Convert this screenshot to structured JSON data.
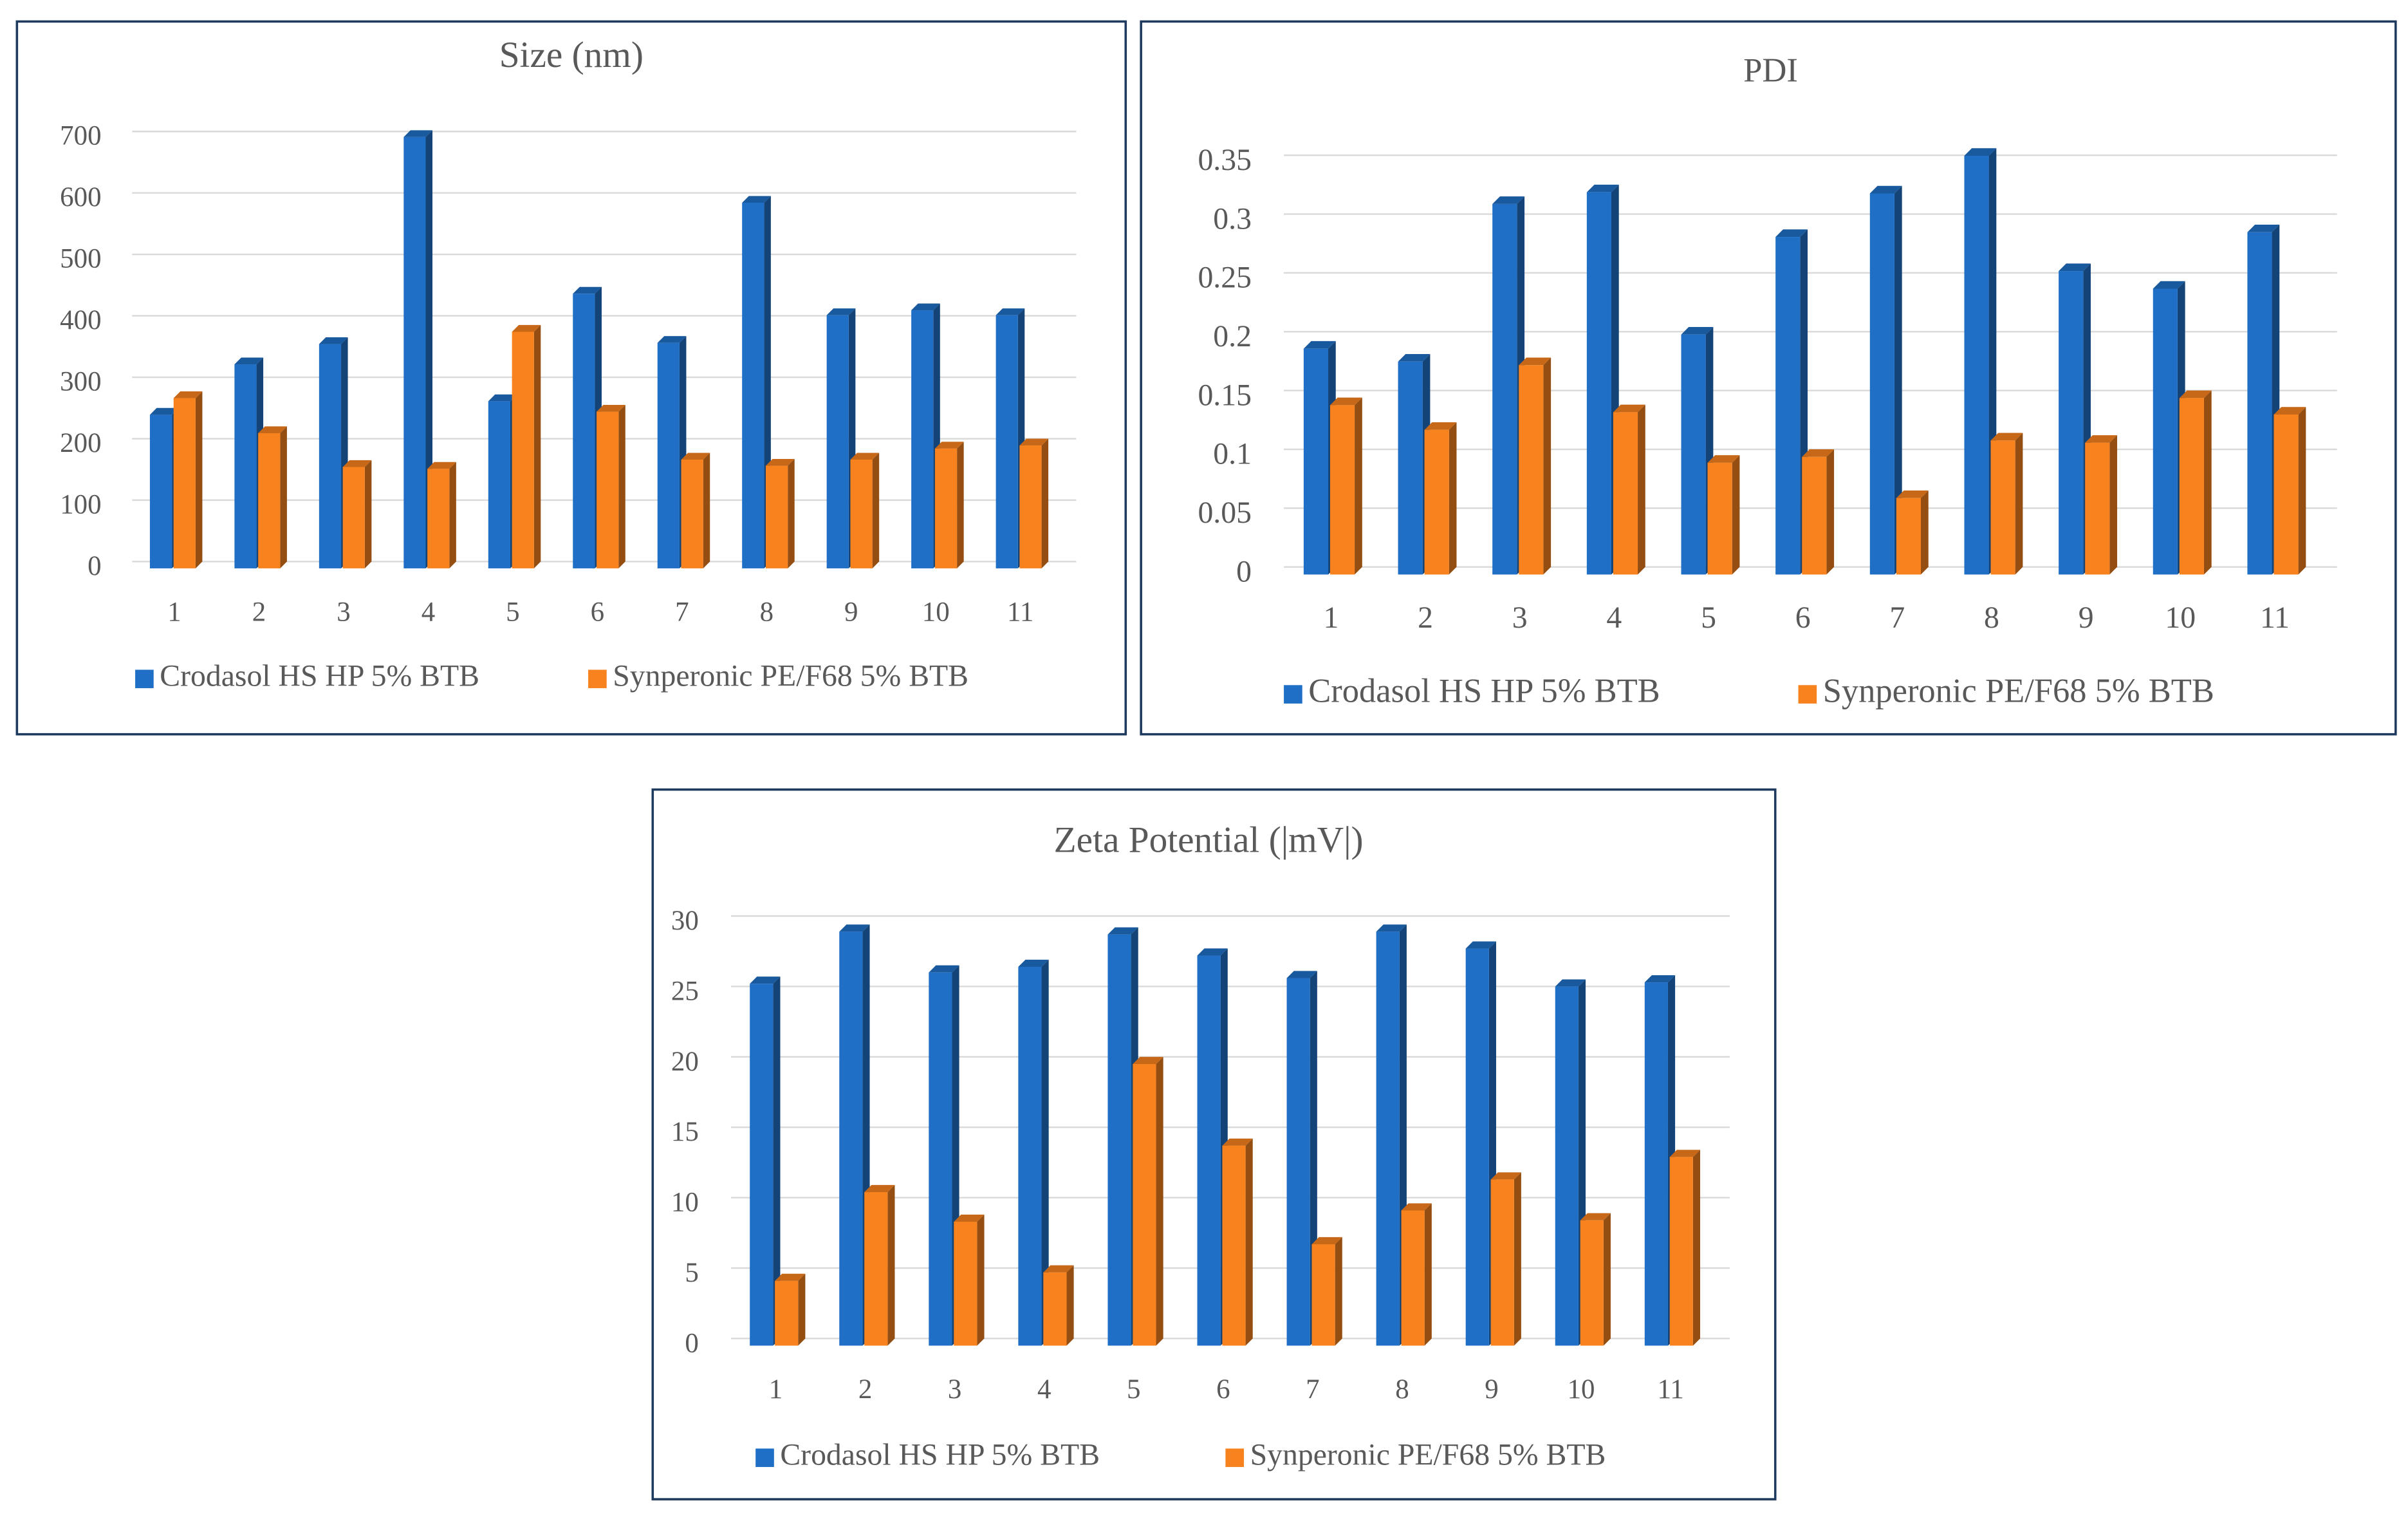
{
  "chart_data": [
    {
      "type": "bar",
      "title": "Size (nm)",
      "categories": [
        "1",
        "2",
        "3",
        "4",
        "5",
        "6",
        "7",
        "8",
        "9",
        "10",
        "11"
      ],
      "series": [
        {
          "name": "Crodasol HS HP 5% BTB",
          "color": "#1f6fc6",
          "values": [
            250,
            332,
            365,
            702,
            272,
            447,
            367,
            595,
            412,
            420,
            412
          ]
        },
        {
          "name": "Synperonic PE/F68 5% BTB",
          "color": "#f7821e",
          "values": [
            277,
            220,
            165,
            162,
            385,
            255,
            177,
            167,
            177,
            195,
            200
          ]
        }
      ],
      "ylim": [
        0,
        700
      ],
      "yticks": [
        0,
        100,
        200,
        300,
        400,
        500,
        600,
        700
      ],
      "grid": true,
      "legend": "bottom"
    },
    {
      "type": "bar",
      "title": "PDI",
      "categories": [
        "1",
        "2",
        "3",
        "4",
        "5",
        "6",
        "7",
        "8",
        "9",
        "10",
        "11"
      ],
      "series": [
        {
          "name": "Crodasol HS HP 5% BTB",
          "color": "#1f6fc6",
          "values": [
            0.192,
            0.181,
            0.315,
            0.325,
            0.204,
            0.287,
            0.324,
            0.356,
            0.258,
            0.243,
            0.291
          ]
        },
        {
          "name": "Synperonic PE/F68 5% BTB",
          "color": "#f7821e",
          "values": [
            0.144,
            0.123,
            0.178,
            0.138,
            0.095,
            0.1,
            0.065,
            0.114,
            0.112,
            0.15,
            0.136
          ]
        }
      ],
      "ylim": [
        0,
        0.35
      ],
      "yticks": [
        0,
        0.05,
        0.1,
        0.15,
        0.2,
        0.25,
        0.3,
        0.35
      ],
      "grid": true,
      "legend": "bottom"
    },
    {
      "type": "bar",
      "title": "Zeta Potential (|mV|)",
      "categories": [
        "1",
        "2",
        "3",
        "4",
        "5",
        "6",
        "7",
        "8",
        "9",
        "10",
        "11"
      ],
      "series": [
        {
          "name": "Crodasol HS HP 5% BTB",
          "color": "#1f6fc6",
          "values": [
            25.7,
            29.4,
            26.5,
            26.9,
            29.2,
            27.7,
            26.1,
            29.4,
            28.2,
            25.5,
            25.8
          ]
        },
        {
          "name": "Synperonic PE/F68 5% BTB",
          "color": "#f7821e",
          "values": [
            4.6,
            10.9,
            8.8,
            5.2,
            20,
            14.2,
            7.2,
            9.6,
            11.8,
            8.9,
            13.4
          ]
        }
      ],
      "ylim": [
        0,
        30
      ],
      "yticks": [
        0,
        5,
        10,
        15,
        20,
        25,
        30
      ],
      "grid": true,
      "legend": "bottom"
    }
  ]
}
